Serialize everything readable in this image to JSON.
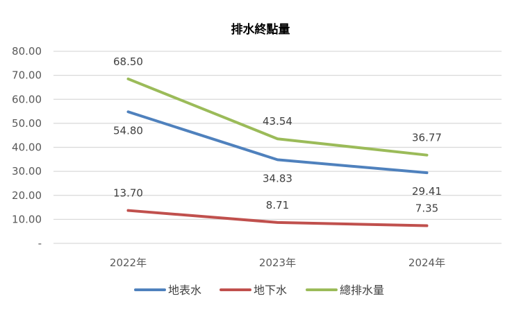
{
  "chart_data": {
    "type": "line",
    "title": "排水終點量",
    "categories": [
      "2022年",
      "2023年",
      "2024年"
    ],
    "ylim": [
      0,
      80
    ],
    "yticks": [
      0,
      10,
      20,
      30,
      40,
      50,
      60,
      70,
      80
    ],
    "ytick_labels": [
      "-",
      "10.00",
      "20.00",
      "30.00",
      "40.00",
      "50.00",
      "60.00",
      "70.00",
      "80.00"
    ],
    "grid": true,
    "legend_position": "bottom",
    "series": [
      {
        "name": "地表水",
        "color": "#4f81bd",
        "values": [
          54.8,
          34.83,
          29.41
        ],
        "labels": [
          "54.80",
          "34.83",
          "29.41"
        ],
        "label_side": "below"
      },
      {
        "name": "地下水",
        "color": "#c0504d",
        "values": [
          13.7,
          8.71,
          7.35
        ],
        "labels": [
          "13.70",
          "8.71",
          "7.35"
        ],
        "label_side": "above"
      },
      {
        "name": "總排水量",
        "color": "#9bbb59",
        "values": [
          68.5,
          43.54,
          36.77
        ],
        "labels": [
          "68.50",
          "43.54",
          "36.77"
        ],
        "label_side": "above"
      }
    ]
  }
}
